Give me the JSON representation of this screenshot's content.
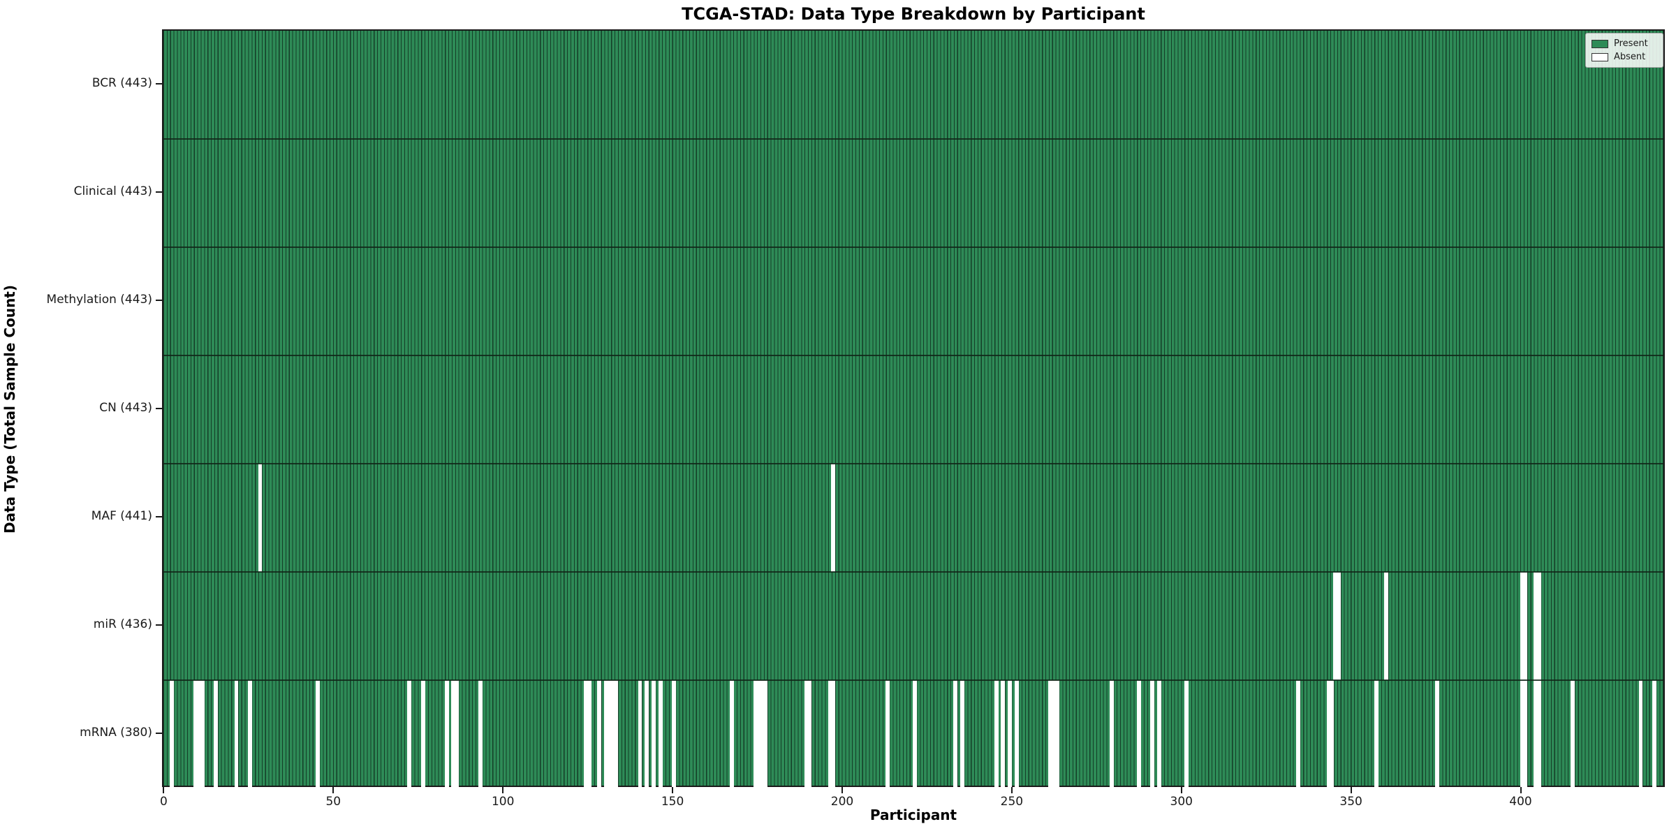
{
  "window": {
    "kind": "static-chart-image"
  },
  "chart_data": {
    "type": "heatmap",
    "title": "TCGA-STAD: Data Type Breakdown by Participant",
    "xlabel": "Participant",
    "ylabel": "Data Type (Total Sample Count)",
    "n_participants": 443,
    "x_ticks": [
      0,
      50,
      100,
      150,
      200,
      250,
      300,
      350,
      400
    ],
    "value_encoding": {
      "present": 1,
      "absent": 0
    },
    "legend": [
      {
        "label": "Present",
        "color": "#2e8b57"
      },
      {
        "label": "Absent",
        "color": "#ffffff"
      }
    ],
    "legend_position": "upper right",
    "grid": false,
    "colors": {
      "present": "#2e8b57",
      "bar_edge": "#143d27",
      "absent": "#ffffff",
      "spine": "#1a1a1a"
    },
    "rows": [
      {
        "name": "BCR",
        "label": "BCR (443)",
        "present_count": 443,
        "absent_participants": []
      },
      {
        "name": "Clinical",
        "label": "Clinical (443)",
        "present_count": 443,
        "absent_participants": []
      },
      {
        "name": "Methylation",
        "label": "Methylation (443)",
        "present_count": 443,
        "absent_participants": []
      },
      {
        "name": "CN",
        "label": "CN (443)",
        "present_count": 443,
        "absent_participants": []
      },
      {
        "name": "MAF",
        "label": "MAF (441)",
        "present_count": 441,
        "absent_participants": [
          28,
          197
        ]
      },
      {
        "name": "miR",
        "label": "miR (436)",
        "present_count": 436,
        "absent_participants": [
          345,
          346,
          360,
          400,
          401,
          404,
          405
        ]
      },
      {
        "name": "mRNA",
        "label": "mRNA (380)",
        "present_count": 380,
        "absent_participants": [
          2,
          9,
          10,
          11,
          15,
          21,
          25,
          45,
          72,
          76,
          83,
          85,
          86,
          93,
          124,
          125,
          128,
          130,
          131,
          132,
          133,
          140,
          142,
          144,
          146,
          150,
          167,
          174,
          175,
          176,
          177,
          189,
          190,
          196,
          197,
          213,
          221,
          233,
          235,
          245,
          247,
          249,
          251,
          261,
          262,
          263,
          279,
          287,
          291,
          293,
          301,
          334,
          343,
          344,
          357,
          375,
          400,
          401,
          404,
          405,
          415,
          435,
          439
        ]
      }
    ]
  }
}
